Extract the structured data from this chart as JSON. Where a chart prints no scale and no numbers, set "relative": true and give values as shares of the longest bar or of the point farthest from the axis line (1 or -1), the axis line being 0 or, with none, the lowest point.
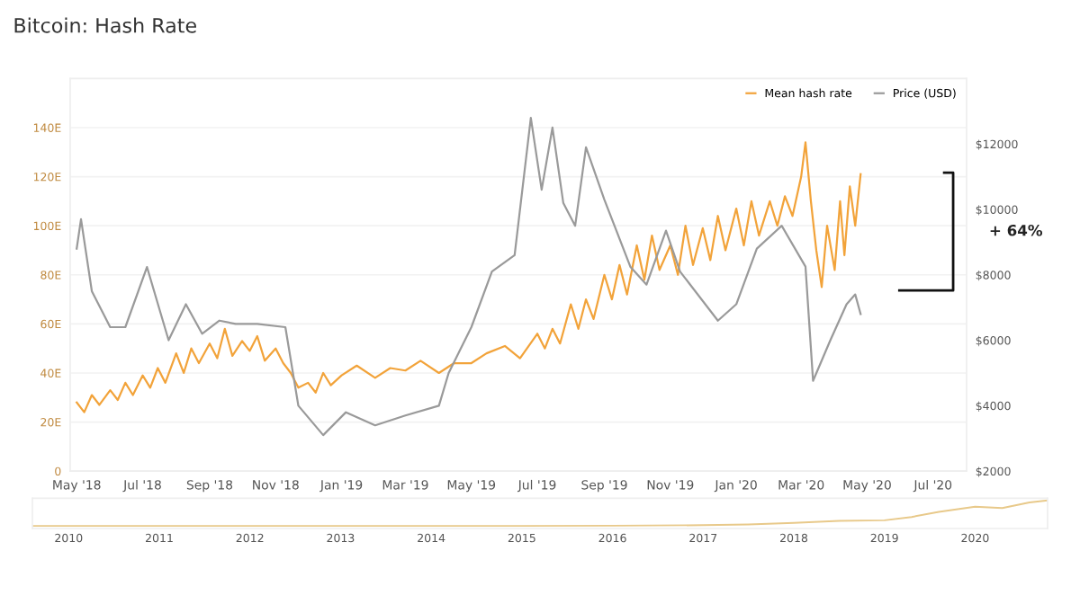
{
  "chart_data": [
    {
      "type": "line",
      "title": "Bitcoin: Hash Rate",
      "legend": "top right",
      "grid": "y",
      "marker": "none",
      "line_style": "solid",
      "xlim": [
        "2018-04-25",
        "2020-08-01"
      ],
      "xticks": [
        {
          "value": "2018-05-01",
          "label": "May '18"
        },
        {
          "value": "2018-07-01",
          "label": "Jul '18"
        },
        {
          "value": "2018-09-01",
          "label": "Sep '18"
        },
        {
          "value": "2018-11-01",
          "label": "Nov '18"
        },
        {
          "value": "2019-01-01",
          "label": "Jan '19"
        },
        {
          "value": "2019-03-01",
          "label": "Mar '19"
        },
        {
          "value": "2019-05-01",
          "label": "May '19"
        },
        {
          "value": "2019-07-01",
          "label": "Jul '19"
        },
        {
          "value": "2019-09-01",
          "label": "Sep '19"
        },
        {
          "value": "2019-11-01",
          "label": "Nov '19"
        },
        {
          "value": "2020-01-01",
          "label": "Jan '20"
        },
        {
          "value": "2020-03-01",
          "label": "Mar '20"
        },
        {
          "value": "2020-05-01",
          "label": "May '20"
        },
        {
          "value": "2020-07-01",
          "label": "Jul '20"
        }
      ],
      "ylim": [
        0,
        160
      ],
      "yticks": [
        0,
        {
          "value": 20,
          "label": "20E"
        },
        {
          "value": 40,
          "label": "40E"
        },
        {
          "value": 60,
          "label": "60E"
        },
        {
          "value": 80,
          "label": "80E"
        },
        {
          "value": 100,
          "label": "100E"
        },
        {
          "value": 120,
          "label": "120E"
        },
        {
          "value": 140,
          "label": "140E"
        }
      ],
      "y2lim": [
        2000,
        14000
      ],
      "y2ticks": [
        {
          "value": 2000,
          "label": "$2000"
        },
        {
          "value": 4000,
          "label": "$4000"
        },
        {
          "value": 6000,
          "label": "$6000"
        },
        {
          "value": 8000,
          "label": "$8000"
        },
        {
          "value": 10000,
          "label": "$10000"
        },
        {
          "value": 12000,
          "label": "$12000"
        }
      ],
      "annotations": [
        "+ 64%"
      ],
      "series": [
        {
          "name": "Mean hash rate",
          "color": "#f2a33a",
          "x": [
            "2018-05-01",
            "2018-05-08",
            "2018-05-15",
            "2018-05-22",
            "2018-06-01",
            "2018-06-08",
            "2018-06-15",
            "2018-06-22",
            "2018-07-01",
            "2018-07-08",
            "2018-07-15",
            "2018-07-22",
            "2018-08-01",
            "2018-08-08",
            "2018-08-15",
            "2018-08-22",
            "2018-09-01",
            "2018-09-08",
            "2018-09-15",
            "2018-09-22",
            "2018-10-01",
            "2018-10-08",
            "2018-10-15",
            "2018-10-22",
            "2018-11-01",
            "2018-11-08",
            "2018-11-15",
            "2018-11-22",
            "2018-12-01",
            "2018-12-08",
            "2018-12-15",
            "2018-12-22",
            "2019-01-01",
            "2019-01-15",
            "2019-02-01",
            "2019-02-15",
            "2019-03-01",
            "2019-03-15",
            "2019-04-01",
            "2019-04-15",
            "2019-05-01",
            "2019-05-15",
            "2019-06-01",
            "2019-06-15",
            "2019-07-01",
            "2019-07-08",
            "2019-07-15",
            "2019-07-22",
            "2019-08-01",
            "2019-08-08",
            "2019-08-15",
            "2019-08-22",
            "2019-09-01",
            "2019-09-08",
            "2019-09-15",
            "2019-09-22",
            "2019-10-01",
            "2019-10-08",
            "2019-10-15",
            "2019-10-22",
            "2019-11-01",
            "2019-11-08",
            "2019-11-15",
            "2019-11-22",
            "2019-12-01",
            "2019-12-08",
            "2019-12-15",
            "2019-12-22",
            "2020-01-01",
            "2020-01-08",
            "2020-01-15",
            "2020-01-22",
            "2020-02-01",
            "2020-02-08",
            "2020-02-15",
            "2020-02-22",
            "2020-03-01",
            "2020-03-05",
            "2020-03-10",
            "2020-03-15",
            "2020-03-20",
            "2020-03-25",
            "2020-04-01",
            "2020-04-06",
            "2020-04-10",
            "2020-04-15",
            "2020-04-20",
            "2020-04-25"
          ],
          "values": [
            28,
            24,
            31,
            27,
            33,
            29,
            36,
            31,
            39,
            34,
            42,
            36,
            48,
            40,
            50,
            44,
            52,
            46,
            58,
            47,
            53,
            49,
            55,
            45,
            50,
            44,
            40,
            34,
            36,
            32,
            40,
            35,
            39,
            43,
            38,
            42,
            41,
            45,
            40,
            44,
            44,
            48,
            51,
            46,
            56,
            50,
            58,
            52,
            68,
            58,
            70,
            62,
            80,
            70,
            84,
            72,
            92,
            78,
            96,
            82,
            92,
            80,
            100,
            84,
            99,
            86,
            104,
            90,
            107,
            92,
            110,
            96,
            110,
            100,
            112,
            104,
            120,
            134,
            110,
            90,
            75,
            100,
            82,
            110,
            88,
            116,
            100,
            121
          ]
        },
        {
          "name": "Price (USD)",
          "color": "#9a9a9a",
          "axis": "y2",
          "x": [
            "2018-05-01",
            "2018-05-05",
            "2018-05-15",
            "2018-06-01",
            "2018-06-15",
            "2018-07-05",
            "2018-07-25",
            "2018-08-10",
            "2018-08-25",
            "2018-09-10",
            "2018-09-25",
            "2018-10-15",
            "2018-11-10",
            "2018-11-22",
            "2018-12-15",
            "2019-01-05",
            "2019-02-01",
            "2019-03-01",
            "2019-04-01",
            "2019-04-10",
            "2019-05-01",
            "2019-05-20",
            "2019-06-10",
            "2019-06-25",
            "2019-07-05",
            "2019-07-15",
            "2019-07-25",
            "2019-08-05",
            "2019-08-15",
            "2019-09-01",
            "2019-09-25",
            "2019-10-10",
            "2019-10-28",
            "2019-11-10",
            "2019-12-15",
            "2020-01-01",
            "2020-01-20",
            "2020-02-12",
            "2020-03-05",
            "2020-03-12",
            "2020-03-28",
            "2020-04-12",
            "2020-04-20",
            "2020-04-25"
          ],
          "values": [
            8800,
            9700,
            7500,
            6400,
            6400,
            8240,
            6000,
            7100,
            6200,
            6600,
            6500,
            6500,
            6400,
            4000,
            3100,
            3800,
            3400,
            3700,
            4000,
            5000,
            6400,
            8100,
            8600,
            12800,
            10600,
            12500,
            10200,
            9500,
            11900,
            10300,
            8250,
            7700,
            9350,
            8100,
            6600,
            7100,
            8800,
            9500,
            8250,
            4760,
            6000,
            7100,
            7400,
            6800
          ]
        }
      ]
    },
    {
      "type": "line",
      "relative": true,
      "tick_labels": "x",
      "marker": "none",
      "xlim": [
        2009.6,
        2020.8
      ],
      "xticks": [
        {
          "value": 2010,
          "label": "2010"
        },
        {
          "value": 2011,
          "label": "2011"
        },
        {
          "value": 2012,
          "label": "2012"
        },
        {
          "value": 2013,
          "label": "2013"
        },
        {
          "value": 2014,
          "label": "2014"
        },
        {
          "value": 2015,
          "label": "2015"
        },
        {
          "value": 2016,
          "label": "2016"
        },
        {
          "value": 2017,
          "label": "2017"
        },
        {
          "value": 2018,
          "label": "2018"
        },
        {
          "value": 2019,
          "label": "2019"
        },
        {
          "value": 2020,
          "label": "2020"
        }
      ],
      "series": [
        {
          "color": "#e8c98a",
          "x": [
            2009.6,
            2011,
            2013,
            2015,
            2016,
            2017,
            2017.5,
            2018,
            2018.5,
            2019,
            2019.3,
            2019.6,
            2020,
            2020.3,
            2020.6,
            2020.8
          ],
          "values": [
            0,
            0,
            0,
            0,
            0.01,
            0.03,
            0.06,
            0.12,
            0.2,
            0.22,
            0.35,
            0.55,
            0.75,
            0.7,
            0.92,
            1
          ]
        }
      ]
    }
  ]
}
